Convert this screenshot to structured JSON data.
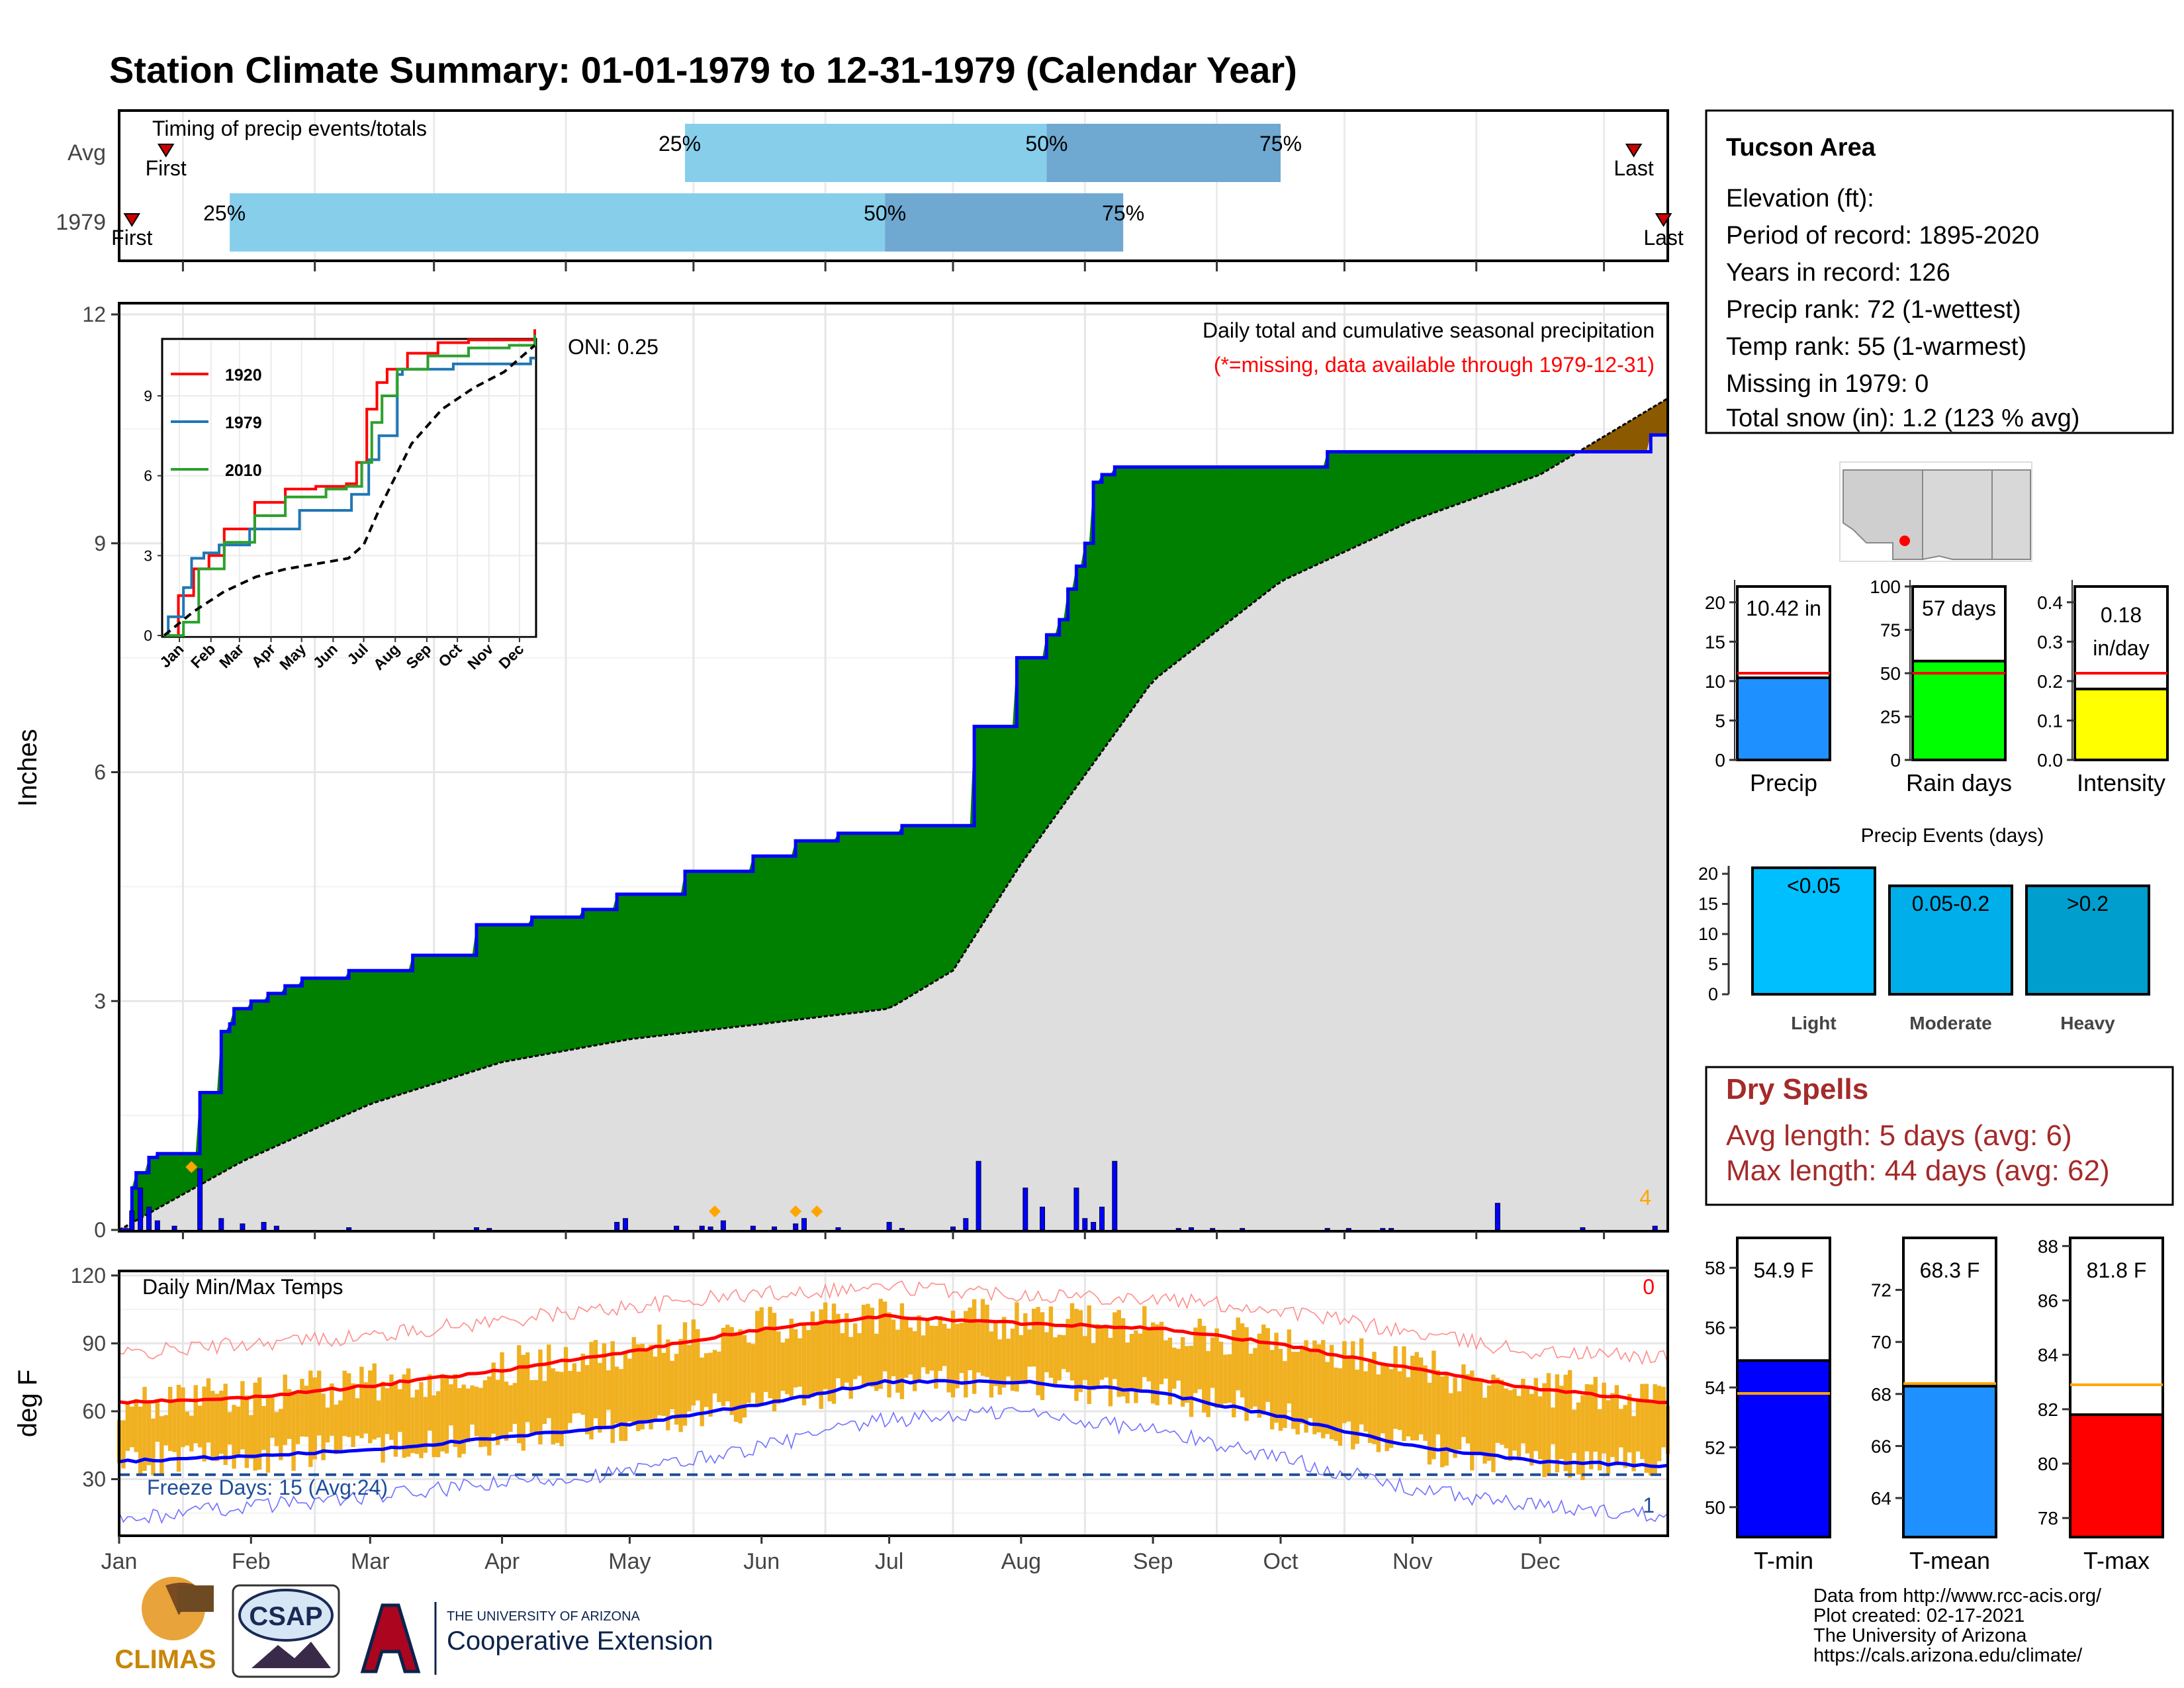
{
  "header": {
    "title": "Station Climate Summary: 01-01-1979 to 12-31-1979 (Calendar Year)"
  },
  "colors": {
    "title": "#000080",
    "precip_fill": "#008000",
    "normal_fill": "#dedede",
    "surplus_fill": "#8b5a00",
    "precip_line": "#0000ff",
    "daily_bar": "#0000ff",
    "snow_marker": "#ffa500",
    "band_light": "#87ceeb",
    "band_dark": "#6fa8d0",
    "temp_bar": "#f0b020",
    "tmax_line": "#ff0000",
    "tmin_line": "#0000ff",
    "dry_spells": "#a52a2a"
  },
  "timing_panel": {
    "title": "Timing of precip events/totals",
    "rows": [
      {
        "label": "Avg",
        "first": "First",
        "last": "Last",
        "p25": "25%",
        "p50": "50%",
        "p75": "75%",
        "first_doy": 12,
        "p25_doy": 134,
        "p50_doy": 219,
        "p75_doy": 274,
        "last_doy": 357
      },
      {
        "label": "1979",
        "first": "First",
        "last": "Last",
        "p25": "25%",
        "p50": "50%",
        "p75": "75%",
        "first_doy": 4,
        "p25_doy": 27,
        "p50_doy": 181,
        "p75_doy": 237,
        "last_doy": 364
      }
    ]
  },
  "precip_panel": {
    "ylabel": "Inches",
    "oni": "ONI: 0.25",
    "title": "Daily total and cumulative seasonal precipitation",
    "subtitle": "(*=missing, data available through 1979-12-31)",
    "yticks": [
      "0",
      "3",
      "6",
      "9",
      "12"
    ],
    "corner_count": "4"
  },
  "inset": {
    "legend": [
      "1920",
      "1979",
      "2010"
    ],
    "legend_colors": [
      "#ff0000",
      "#1f77b4",
      "#2ca02c"
    ],
    "yticks": [
      "0",
      "3",
      "6",
      "9"
    ],
    "xticks": [
      "Jan",
      "Feb",
      "Mar",
      "Apr",
      "May",
      "Jun",
      "Jul",
      "Aug",
      "Sep",
      "Oct",
      "Nov",
      "Dec"
    ]
  },
  "temp_panel": {
    "ylabel": "deg F",
    "title": "Daily Min/Max Temps",
    "corner_count": "0",
    "freeze": "Freeze Days: 15 (Avg:24)",
    "bottom_count": "1",
    "yticks": [
      "30",
      "60",
      "90",
      "120"
    ]
  },
  "months": [
    "Jan",
    "Feb",
    "Mar",
    "Apr",
    "May",
    "Jun",
    "Jul",
    "Aug",
    "Sep",
    "Oct",
    "Nov",
    "Dec"
  ],
  "station": {
    "name": "Tucson Area",
    "lines": [
      "Elevation (ft):",
      "Period of record: 1895-2020",
      "Years in record: 126",
      "Precip rank: 72 (1-wettest)",
      "Temp rank: 55 (1-warmest)",
      "Missing in 1979: 0",
      "Total snow (in): 1.2 (123 % avg)"
    ]
  },
  "summary_bars": [
    {
      "label": "Precip",
      "value_text": "10.42 in",
      "value": 10.42,
      "avg": 11.0,
      "ymax": 22,
      "yticks": [
        "0",
        "5",
        "10",
        "15",
        "20"
      ],
      "tickvals": [
        0,
        5,
        10,
        15,
        20
      ],
      "color": "#1e90ff"
    },
    {
      "label": "Rain days",
      "value_text": "57 days",
      "value": 57,
      "avg": 50,
      "ymax": 100,
      "yticks": [
        "0",
        "25",
        "50",
        "75",
        "100"
      ],
      "tickvals": [
        0,
        25,
        50,
        75,
        100
      ],
      "color": "#00ff00"
    },
    {
      "label": "Intensity",
      "value_text": "0.18",
      "value_text2": "in/day",
      "value": 0.18,
      "avg": 0.22,
      "ymax": 0.44,
      "yticks": [
        "0.0",
        "0.1",
        "0.2",
        "0.3",
        "0.4"
      ],
      "tickvals": [
        0,
        0.1,
        0.2,
        0.3,
        0.4
      ],
      "color": "#ffff00"
    }
  ],
  "events": {
    "title": "Precip Events (days)",
    "yticks": [
      "0",
      "5",
      "10",
      "15",
      "20"
    ],
    "bars": [
      {
        "label": "Light",
        "range": "<0.05",
        "value": 21,
        "color": "#00bfff"
      },
      {
        "label": "Moderate",
        "range": "0.05-0.2",
        "value": 18,
        "color": "#00aeea"
      },
      {
        "label": "Heavy",
        "range": ">0.2",
        "value": 18,
        "color": "#009ecd"
      }
    ]
  },
  "dry_spells": {
    "title": "Dry Spells",
    "avg": "Avg length: 5 days (avg: 6)",
    "max": "Max length: 44 days (avg: 62)"
  },
  "temp_bars": [
    {
      "label": "T-min",
      "value_text": "54.9 F",
      "value": 54.9,
      "avg": 53.8,
      "ymin": 49,
      "ymax": 59,
      "yticks": [
        "50",
        "52",
        "54",
        "56",
        "58"
      ],
      "tickvals": [
        50,
        52,
        54,
        56,
        58
      ],
      "color": "#0000ff"
    },
    {
      "label": "T-mean",
      "value_text": "68.3 F",
      "value": 68.3,
      "avg": 68.4,
      "ymin": 62.5,
      "ymax": 74,
      "yticks": [
        "64",
        "66",
        "68",
        "70",
        "72"
      ],
      "tickvals": [
        64,
        66,
        68,
        70,
        72
      ],
      "color": "#1e90ff"
    },
    {
      "label": "T-max",
      "value_text": "81.8 F",
      "value": 81.8,
      "avg": 82.9,
      "ymin": 77.3,
      "ymax": 88.3,
      "yticks": [
        "78",
        "80",
        "82",
        "84",
        "86",
        "88"
      ],
      "tickvals": [
        78,
        80,
        82,
        84,
        86,
        88
      ],
      "color": "#ff0000"
    }
  ],
  "footer": {
    "lines": [
      "Data from http://www.rcc-acis.org/",
      "Plot created: 02-17-2021",
      "The University of Arizona",
      "https://cals.arizona.edu/climate/"
    ],
    "logo_climas": "CLIMAS",
    "logo_csap": "CSAP",
    "ua_line1": "THE UNIVERSITY OF ARIZONA",
    "ua_line2": "Cooperative Extension"
  },
  "chart_data": [
    {
      "type": "area",
      "title": "Daily total and cumulative seasonal precipitation",
      "ylabel": "Inches",
      "ylim": [
        0,
        12
      ],
      "x_units": "day of year",
      "series": [
        {
          "name": "cumulative_1979",
          "x": [
            1,
            4,
            5,
            8,
            10,
            20,
            25,
            27,
            28,
            32,
            36,
            40,
            44,
            55,
            70,
            85,
            90,
            98,
            110,
            118,
            134,
            150,
            160,
            170,
            180,
            185,
            195,
            202,
            203,
            212,
            219,
            222,
            224,
            226,
            228,
            230,
            232,
            235,
            282,
            285,
            361,
            365
          ],
          "y": [
            0.0,
            0.55,
            0.75,
            0.95,
            1.0,
            1.8,
            2.6,
            2.7,
            2.9,
            3.0,
            3.1,
            3.2,
            3.3,
            3.4,
            3.6,
            4.0,
            4.0,
            4.1,
            4.2,
            4.4,
            4.7,
            4.9,
            5.1,
            5.2,
            5.2,
            5.3,
            5.3,
            6.6,
            6.6,
            7.5,
            7.8,
            8.0,
            8.4,
            8.7,
            9.0,
            9.8,
            9.9,
            10.0,
            10.0,
            10.2,
            10.42,
            10.42
          ]
        },
        {
          "name": "cumulative_avg",
          "x": [
            1,
            30,
            60,
            91,
            121,
            152,
            182,
            197,
            213,
            244,
            274,
            305,
            335,
            365
          ],
          "y": [
            0.0,
            0.9,
            1.65,
            2.2,
            2.5,
            2.7,
            2.9,
            3.4,
            4.8,
            7.2,
            8.5,
            9.3,
            9.9,
            10.9
          ]
        }
      ],
      "daily_bars": {
        "x": [
          4,
          6,
          8,
          10,
          14,
          20,
          25,
          30,
          35,
          38,
          55,
          85,
          88,
          118,
          120,
          132,
          138,
          140,
          143,
          150,
          155,
          160,
          162,
          170,
          182,
          185,
          197,
          200,
          203,
          214,
          218,
          226,
          228,
          230,
          232,
          235,
          250,
          253,
          258,
          265,
          285,
          290,
          298,
          300,
          325,
          345,
          362
        ],
        "y": [
          0.25,
          0.55,
          0.3,
          0.12,
          0.05,
          0.8,
          0.15,
          0.08,
          0.1,
          0.05,
          0.03,
          0.03,
          0.02,
          0.1,
          0.15,
          0.05,
          0.05,
          0.04,
          0.12,
          0.05,
          0.04,
          0.08,
          0.15,
          0.03,
          0.1,
          0.02,
          0.04,
          0.15,
          0.9,
          0.55,
          0.3,
          0.55,
          0.15,
          0.1,
          0.3,
          0.9,
          0.02,
          0.03,
          0.02,
          0.02,
          0.02,
          0.02,
          0.02,
          0.02,
          0.35,
          0.03,
          0.05
        ]
      },
      "snow_markers_doy": [
        18,
        141,
        160,
        165
      ]
    },
    {
      "type": "line",
      "title": "",
      "series": [
        {
          "name": "1920",
          "x": [
            1,
            15,
            30,
            45,
            60,
            90,
            120,
            150,
            180,
            190,
            200,
            210,
            220,
            240,
            270,
            300,
            330,
            365
          ],
          "y": [
            0,
            1.5,
            2.5,
            3.0,
            4.0,
            5.0,
            5.5,
            5.6,
            5.7,
            6.5,
            8.5,
            9.5,
            10.0,
            10.6,
            11.0,
            11.1,
            11.1,
            11.5
          ]
        },
        {
          "name": "1979",
          "x": [
            1,
            5,
            20,
            28,
            40,
            55,
            85,
            134,
            185,
            202,
            212,
            230,
            235,
            285,
            361,
            365
          ],
          "y": [
            0,
            0.7,
            1.8,
            2.9,
            3.1,
            3.4,
            4.0,
            4.7,
            5.3,
            6.6,
            7.5,
            9.8,
            10.0,
            10.2,
            10.42,
            10.42
          ]
        },
        {
          "name": "2010",
          "x": [
            1,
            20,
            35,
            60,
            90,
            120,
            160,
            180,
            195,
            205,
            215,
            230,
            260,
            300,
            340,
            365
          ],
          "y": [
            0,
            0.5,
            2.5,
            3.5,
            4.5,
            5.2,
            5.5,
            5.6,
            6.5,
            8.0,
            9.0,
            10.0,
            10.5,
            10.8,
            10.9,
            11.3
          ]
        },
        {
          "name": "avg",
          "x": [
            1,
            30,
            60,
            91,
            121,
            152,
            182,
            197,
            213,
            244,
            274,
            305,
            335,
            365
          ],
          "y": [
            0,
            0.9,
            1.65,
            2.2,
            2.5,
            2.7,
            2.9,
            3.4,
            4.8,
            7.2,
            8.5,
            9.3,
            9.9,
            10.9
          ]
        }
      ],
      "xticks": [
        "Jan",
        "Feb",
        "Mar",
        "Apr",
        "May",
        "Jun",
        "Jul",
        "Aug",
        "Sep",
        "Oct",
        "Nov",
        "Dec"
      ],
      "ylim": [
        0,
        11.7
      ]
    },
    {
      "type": "line",
      "title": "Daily Min/Max Temps",
      "ylabel": "deg F",
      "ylim": [
        5,
        122
      ],
      "series": [
        {
          "name": "avg_tmax",
          "x": [
            1,
            31,
            59,
            90,
            120,
            151,
            181,
            212,
            243,
            273,
            304,
            334,
            365
          ],
          "y": [
            64,
            66,
            71,
            78,
            86,
            96,
            102,
            99,
            97,
            90,
            79,
            70,
            64
          ]
        },
        {
          "name": "avg_tmin",
          "x": [
            1,
            31,
            59,
            90,
            120,
            151,
            181,
            212,
            243,
            273,
            304,
            334,
            365
          ],
          "y": [
            38,
            40,
            43,
            48,
            54,
            63,
            73,
            73,
            69,
            58,
            45,
            38,
            36
          ]
        },
        {
          "name": "record_tmax",
          "x": [
            1,
            31,
            59,
            90,
            120,
            151,
            181,
            212,
            243,
            273,
            304,
            334,
            365
          ],
          "y": [
            85,
            90,
            93,
            100,
            106,
            112,
            115,
            112,
            110,
            105,
            95,
            86,
            84
          ]
        },
        {
          "name": "record_tmin",
          "x": [
            1,
            31,
            59,
            90,
            120,
            151,
            181,
            212,
            243,
            273,
            304,
            334,
            365
          ],
          "y": [
            12,
            18,
            22,
            28,
            33,
            44,
            56,
            60,
            52,
            40,
            26,
            18,
            14
          ]
        }
      ],
      "freeze_line": 32
    },
    {
      "type": "bar",
      "categories": [
        "Precip",
        "Rain days",
        "Intensity"
      ],
      "values": [
        10.42,
        57,
        0.18
      ],
      "averages": [
        11.0,
        50,
        0.22
      ]
    },
    {
      "type": "bar",
      "title": "Precip Events (days)",
      "categories": [
        "Light",
        "Moderate",
        "Heavy"
      ],
      "values": [
        21,
        18,
        18
      ]
    },
    {
      "type": "bar",
      "categories": [
        "T-min",
        "T-mean",
        "T-max"
      ],
      "values": [
        54.9,
        68.3,
        81.8
      ],
      "averages": [
        53.8,
        68.4,
        82.9
      ]
    }
  ]
}
